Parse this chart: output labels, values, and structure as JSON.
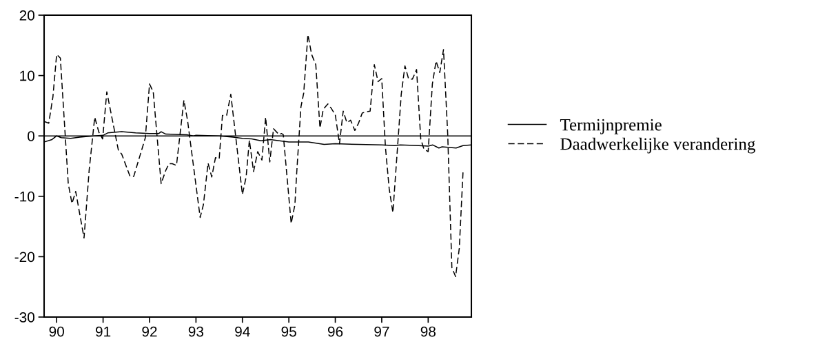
{
  "chart_data": {
    "type": "line",
    "xlim": [
      89.73,
      98.93
    ],
    "xticks": [
      90,
      91,
      92,
      93,
      94,
      95,
      96,
      97,
      98
    ],
    "ylim": [
      -30,
      20
    ],
    "yticks": [
      -30,
      -20,
      -10,
      0,
      10,
      20
    ],
    "grid": false,
    "legend": "right",
    "ref_lines": [
      {
        "axis": "y",
        "value": 0,
        "color": "#000000",
        "line_style": "solid"
      }
    ],
    "series": [
      {
        "name": "Termijnpremie",
        "color": "#000000",
        "line_style": "solid",
        "x": [
          89.73,
          89.9,
          90.0,
          90.1,
          90.3,
          90.5,
          90.8,
          91.0,
          91.1,
          91.4,
          91.7,
          92.0,
          92.2,
          92.25,
          92.35,
          92.8,
          92.95,
          93.0,
          93.5,
          93.8,
          94.0,
          94.2,
          94.4,
          94.6,
          94.88,
          95.0,
          95.42,
          95.76,
          96.0,
          96.5,
          97.0,
          97.28,
          97.4,
          97.8,
          98.0,
          98.1,
          98.23,
          98.3,
          98.6,
          98.75,
          98.93
        ],
        "values": [
          -1.0,
          -0.6,
          0,
          -0.3,
          -0.4,
          -0.2,
          0,
          0.1,
          0.5,
          0.7,
          0.5,
          0.4,
          0.4,
          0.7,
          0.3,
          0.2,
          0,
          0.1,
          0,
          -0.2,
          -0.4,
          -0.5,
          -0.8,
          -0.6,
          -0.9,
          -1.0,
          -1.0,
          -1.4,
          -1.3,
          -1.4,
          -1.5,
          -1.6,
          -1.5,
          -1.6,
          -1.7,
          -1.5,
          -2.0,
          -1.8,
          -2.0,
          -1.6,
          -1.5
        ]
      },
      {
        "name": "Daadwerkelijke verandering",
        "color": "#000000",
        "line_style": "dashed",
        "x": [
          89.73,
          89.83,
          89.92,
          90.0,
          90.08,
          90.25,
          90.33,
          90.41,
          90.59,
          90.7,
          90.82,
          90.91,
          90.99,
          91.08,
          91.33,
          91.4,
          91.58,
          91.66,
          91.91,
          92.0,
          92.08,
          92.25,
          92.35,
          92.42,
          92.49,
          92.58,
          92.74,
          92.82,
          93.09,
          93.16,
          93.26,
          93.34,
          93.42,
          93.5,
          93.57,
          93.66,
          93.75,
          94.0,
          94.08,
          94.15,
          94.24,
          94.33,
          94.42,
          94.5,
          94.59,
          94.67,
          94.79,
          94.84,
          94.88,
          95.05,
          95.13,
          95.17,
          95.26,
          95.32,
          95.41,
          95.49,
          95.58,
          95.67,
          95.74,
          95.84,
          95.91,
          96.0,
          96.09,
          96.17,
          96.25,
          96.33,
          96.42,
          96.5,
          96.58,
          96.67,
          96.75,
          96.84,
          96.92,
          97.0,
          97.08,
          97.16,
          97.24,
          97.34,
          97.42,
          97.5,
          97.58,
          97.66,
          97.75,
          97.84,
          97.91,
          98.0,
          98.09,
          98.17,
          98.25,
          98.33,
          98.42,
          98.51,
          98.59,
          98.67,
          98.75
        ],
        "values": [
          2.4,
          2.1,
          6.5,
          13.5,
          12.9,
          -7.9,
          -11.2,
          -9.2,
          -16.9,
          -5.7,
          3.1,
          0.6,
          -0.5,
          7.3,
          -2.4,
          -3.0,
          -6.7,
          -6.7,
          -0.3,
          8.6,
          7.3,
          -7.9,
          -5.7,
          -4.6,
          -4.6,
          -4.9,
          5.9,
          2.5,
          -13.5,
          -11.4,
          -4.5,
          -6.8,
          -3.6,
          -3.8,
          3.4,
          3.4,
          6.9,
          -9.7,
          -6.8,
          -0.7,
          -5.9,
          -2.6,
          -4.0,
          3.1,
          -4.3,
          1.2,
          0.2,
          0.4,
          0.2,
          -14.5,
          -11.4,
          -6.0,
          4.8,
          7.1,
          16.8,
          13.5,
          11.8,
          1.3,
          4.4,
          5.3,
          4.6,
          3.5,
          -1.3,
          4.1,
          2.2,
          2.6,
          0.9,
          2.1,
          3.8,
          4.0,
          4.1,
          11.8,
          9.0,
          9.5,
          -1.9,
          -8.7,
          -12.7,
          -1.9,
          6.9,
          11.6,
          9.4,
          9.4,
          11.0,
          -0.5,
          -2.2,
          -2.6,
          8.6,
          12.4,
          10.5,
          14.3,
          0.4,
          -21.8,
          -23.3,
          -18.6,
          -6.0
        ]
      }
    ]
  }
}
